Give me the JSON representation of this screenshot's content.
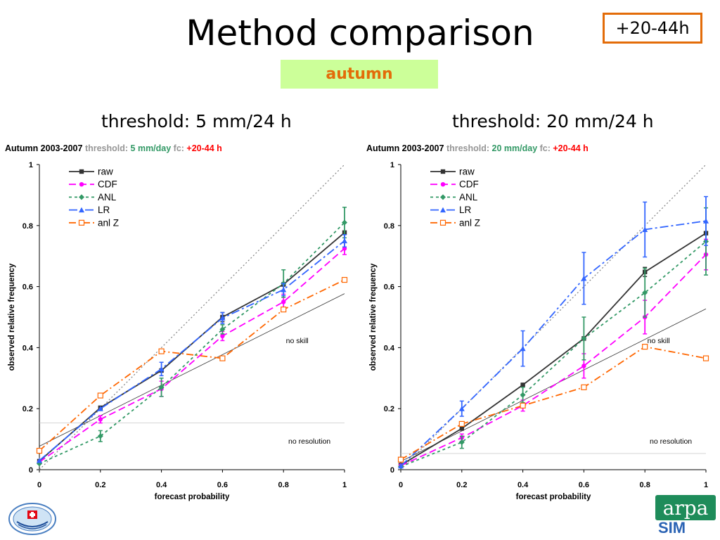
{
  "page": {
    "title": "Method comparison",
    "badge": "+20-44h",
    "season": "autumn",
    "left_heading": "threshold: 5 mm/24 h",
    "right_heading": "threshold: 20 mm/24 h",
    "logo_text": "arpa",
    "logo_sub": "SIM"
  },
  "chart_data": [
    {
      "type": "line",
      "title_parts": {
        "period": "Autumn 2003-2007",
        "thr_label": "threshold:",
        "thr_value": "5 mm/day",
        "fc_label": "fc:",
        "fc_value": "+20-44 h"
      },
      "xlabel": "forecast probability",
      "ylabel": "observed relative frequency",
      "xlim": [
        0,
        1
      ],
      "ylim": [
        0,
        1
      ],
      "xticks": [
        "0",
        "0.2",
        "0.4",
        "0.6",
        "0.8",
        "1"
      ],
      "yticks": [
        "0",
        "0.2",
        "0.4",
        "0.6",
        "0.8",
        "1"
      ],
      "legend_position": "top-left",
      "annotations": {
        "no_skill": "no skill",
        "no_resolution": "no resolution"
      },
      "no_resolution_level": 0.153,
      "no_skill_line": [
        [
          0,
          0.077
        ],
        [
          1,
          0.577
        ]
      ],
      "x": [
        0,
        0.2,
        0.4,
        0.6,
        0.8,
        1
      ],
      "series": [
        {
          "name": "raw",
          "color": "#333333",
          "marker": "square",
          "dash": "",
          "values": [
            0.028,
            0.203,
            0.325,
            0.5,
            0.607,
            0.777
          ],
          "err": [
            0,
            0,
            0,
            0.015,
            0,
            0
          ]
        },
        {
          "name": "CDF",
          "color": "#ff00ff",
          "marker": "circle",
          "dash": "10,5",
          "values": [
            0.025,
            0.165,
            0.265,
            0.438,
            0.55,
            0.725
          ],
          "err": [
            0,
            0.012,
            0.025,
            0.015,
            0.025,
            0.02
          ]
        },
        {
          "name": "ANL",
          "color": "#339966",
          "marker": "diamond",
          "dash": "4,4",
          "values": [
            0.02,
            0.11,
            0.27,
            0.46,
            0.61,
            0.81
          ],
          "err": [
            0,
            0.018,
            0.03,
            0.015,
            0.045,
            0.05
          ]
        },
        {
          "name": "LR",
          "color": "#3366ff",
          "marker": "triangle",
          "dash": "12,4,3,4",
          "values": [
            0.03,
            0.2,
            0.33,
            0.497,
            0.59,
            0.75
          ],
          "err": [
            0,
            0,
            0.022,
            0.018,
            0.02,
            0.02
          ]
        },
        {
          "name": "anl Z",
          "color": "#ff6600",
          "marker": "open-square",
          "dash": "10,4,2,4",
          "values": [
            0.062,
            0.243,
            0.388,
            0.365,
            0.525,
            0.622
          ],
          "err": [
            0,
            0,
            0,
            0,
            0,
            0
          ]
        }
      ]
    },
    {
      "type": "line",
      "title_parts": {
        "period": "Autumn 2003-2007",
        "thr_label": "threshold:",
        "thr_value": "20 mm/day",
        "fc_label": "fc:",
        "fc_value": "+20-44 h"
      },
      "xlabel": "forecast probability",
      "ylabel": "observed relative frequency",
      "xlim": [
        0,
        1
      ],
      "ylim": [
        0,
        1
      ],
      "xticks": [
        "0",
        "0.2",
        "0.4",
        "0.6",
        "0.8",
        "1"
      ],
      "yticks": [
        "0",
        "0.2",
        "0.4",
        "0.6",
        "0.8",
        "1"
      ],
      "legend_position": "top-left",
      "annotations": {
        "no_skill": "no skill",
        "no_resolution": "no resolution"
      },
      "no_resolution_level": 0.053,
      "no_skill_line": [
        [
          0,
          0.027
        ],
        [
          1,
          0.527
        ]
      ],
      "x": [
        0,
        0.2,
        0.4,
        0.6,
        0.8,
        1
      ],
      "series": [
        {
          "name": "raw",
          "color": "#333333",
          "marker": "square",
          "dash": "",
          "values": [
            0.015,
            0.135,
            0.278,
            0.43,
            0.648,
            0.775
          ],
          "err": [
            0,
            0,
            0,
            0,
            0.015,
            0
          ]
        },
        {
          "name": "CDF",
          "color": "#ff00ff",
          "marker": "circle",
          "dash": "10,5",
          "values": [
            0.013,
            0.105,
            0.21,
            0.34,
            0.5,
            0.705
          ],
          "err": [
            0,
            0.012,
            0.018,
            0.04,
            0.055,
            0.05
          ]
        },
        {
          "name": "ANL",
          "color": "#339966",
          "marker": "diamond",
          "dash": "4,4",
          "values": [
            0.01,
            0.09,
            0.245,
            0.43,
            0.58,
            0.748
          ],
          "err": [
            0,
            0.02,
            0.025,
            0.07,
            0.08,
            0.11
          ]
        },
        {
          "name": "LR",
          "color": "#3366ff",
          "marker": "triangle",
          "dash": "12,4,3,4",
          "values": [
            0.012,
            0.2,
            0.397,
            0.627,
            0.787,
            0.815
          ],
          "err": [
            0,
            0.025,
            0.058,
            0.085,
            0.09,
            0.08
          ]
        },
        {
          "name": "anl Z",
          "color": "#ff6600",
          "marker": "open-square",
          "dash": "10,4,2,4",
          "values": [
            0.033,
            0.15,
            0.21,
            0.27,
            0.403,
            0.365
          ],
          "err": [
            0,
            0,
            0,
            0,
            0,
            0
          ]
        }
      ]
    }
  ]
}
